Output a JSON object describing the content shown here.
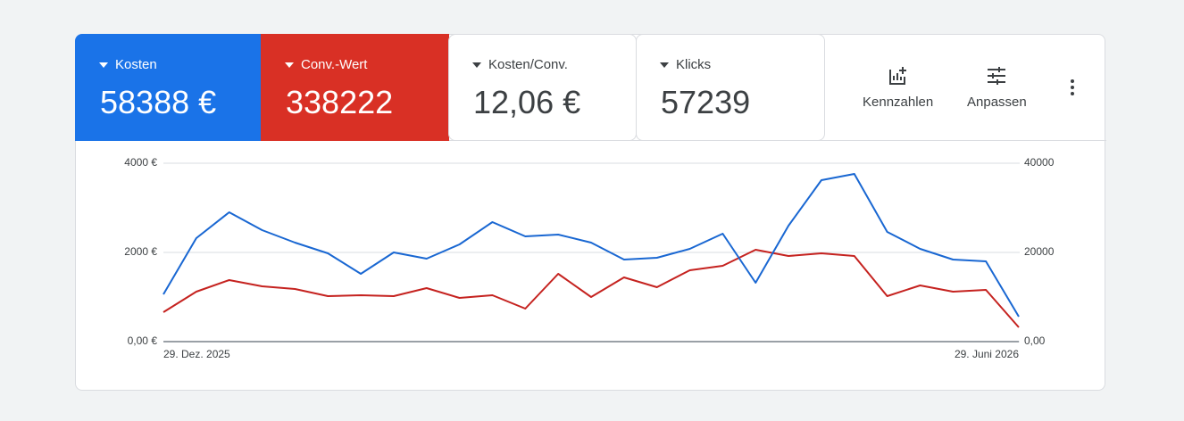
{
  "cards": [
    {
      "label": "Kosten",
      "value": "58388 €"
    },
    {
      "label": "Conv.-Wert",
      "value": "338222"
    },
    {
      "label": "Kosten/Conv.",
      "value": "12,06 €"
    },
    {
      "label": "Klicks",
      "value": "57239"
    }
  ],
  "toolbar": [
    "Kennzahlen",
    "Anpassen"
  ],
  "chart_data": {
    "type": "line",
    "categories": [
      "29. Dez. 2025",
      null,
      null,
      null,
      null,
      null,
      null,
      null,
      null,
      null,
      null,
      null,
      null,
      null,
      null,
      null,
      null,
      null,
      null,
      null,
      null,
      null,
      null,
      null,
      null,
      null,
      "29. Juni 2026"
    ],
    "series": [
      {
        "name": "Kosten",
        "color": "#1967d2",
        "axis": "y",
        "values": [
          1060,
          2320,
          2900,
          2500,
          2220,
          1980,
          1520,
          2000,
          1860,
          2180,
          2680,
          2360,
          2400,
          2220,
          1840,
          1880,
          2080,
          2420,
          1320,
          2600,
          3620,
          3760,
          2460,
          2080,
          1840,
          1800,
          560
        ]
      },
      {
        "name": "Conv.-Wert",
        "color": "#c5221f",
        "axis": "y2",
        "values": [
          6600,
          11200,
          13800,
          12400,
          11800,
          10200,
          10400,
          10200,
          12000,
          9800,
          10400,
          7400,
          15200,
          10000,
          14400,
          12200,
          16000,
          17000,
          20600,
          19200,
          19800,
          19200,
          10200,
          12600,
          11200,
          11600,
          3200
        ]
      }
    ],
    "ylim": [
      0,
      4000
    ],
    "yticks": [
      {
        "value": 0,
        "label": "0,00 €"
      },
      {
        "value": 2000,
        "label": "2000 €"
      },
      {
        "value": 4000,
        "label": "4000 €"
      }
    ],
    "y2lim": [
      0,
      40000
    ],
    "y2ticks": [
      {
        "value": 0,
        "label": "0,00"
      },
      20000,
      40000
    ],
    "grid": true
  }
}
